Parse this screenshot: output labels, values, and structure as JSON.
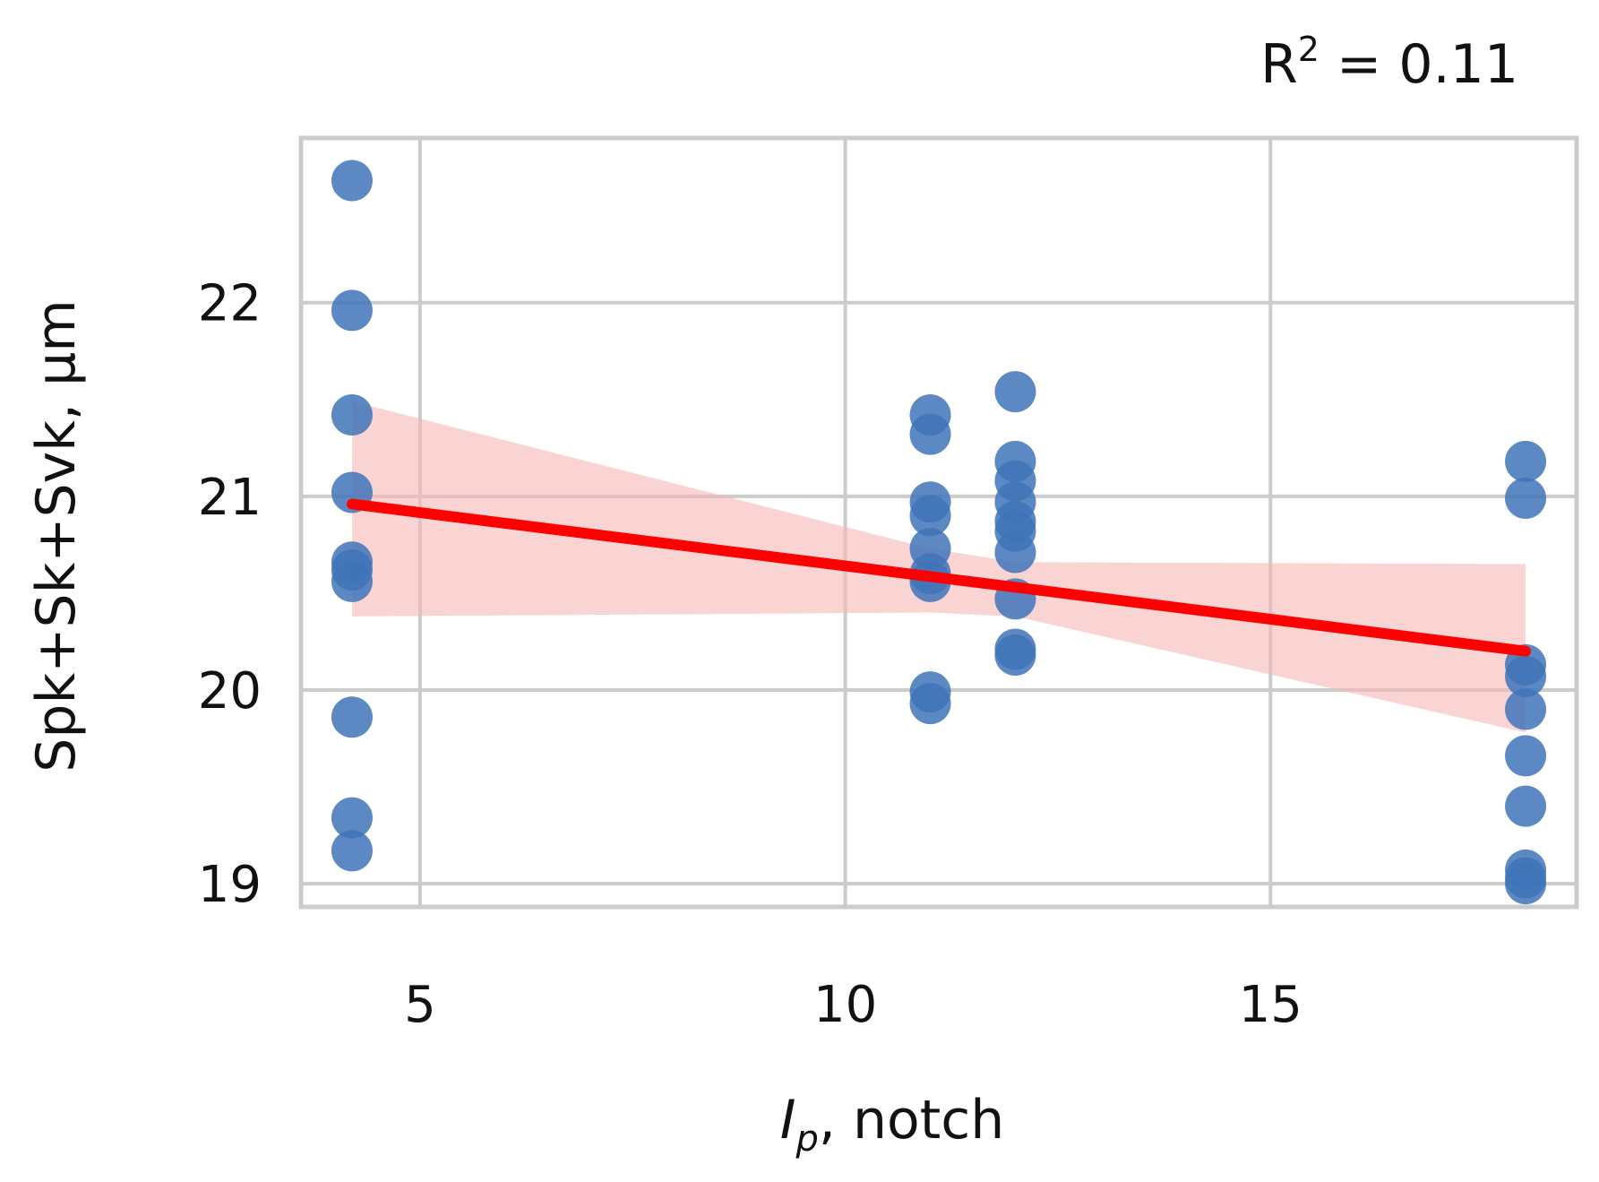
{
  "chart_data": {
    "type": "scatter",
    "title": "",
    "annotation": {
      "r2_label": "R",
      "r2_sup": "2",
      "r2_value": " = 0.11"
    },
    "xlabel": {
      "italic": "I",
      "subscript": "p",
      "rest": ", notch"
    },
    "ylabel": "Spk+Sk+Svk, μm",
    "xlim": [
      3.6,
      18.6
    ],
    "ylim": [
      18.88,
      22.85
    ],
    "x_ticks": [
      5,
      10,
      15
    ],
    "y_ticks": [
      19,
      20,
      21,
      22
    ],
    "x_tick_labels": [
      "5",
      "10",
      "15"
    ],
    "y_tick_labels": [
      "19",
      "20",
      "21",
      "22"
    ],
    "grid": true,
    "points_color": "#3f74b8",
    "fit_color": "#ff0000",
    "band_color": "#f7b6b6",
    "points": [
      {
        "x": 4.2,
        "y": 22.63
      },
      {
        "x": 4.2,
        "y": 21.96
      },
      {
        "x": 4.2,
        "y": 21.42
      },
      {
        "x": 4.2,
        "y": 21.02
      },
      {
        "x": 4.2,
        "y": 20.66
      },
      {
        "x": 4.2,
        "y": 20.62
      },
      {
        "x": 4.2,
        "y": 20.56
      },
      {
        "x": 4.2,
        "y": 19.86
      },
      {
        "x": 4.2,
        "y": 19.34
      },
      {
        "x": 4.2,
        "y": 19.17
      },
      {
        "x": 11.0,
        "y": 21.42
      },
      {
        "x": 11.0,
        "y": 21.32
      },
      {
        "x": 11.0,
        "y": 20.97
      },
      {
        "x": 11.0,
        "y": 20.9
      },
      {
        "x": 11.0,
        "y": 20.73
      },
      {
        "x": 11.0,
        "y": 20.6
      },
      {
        "x": 11.0,
        "y": 20.56
      },
      {
        "x": 11.0,
        "y": 19.99
      },
      {
        "x": 11.0,
        "y": 19.93
      },
      {
        "x": 12.0,
        "y": 21.54
      },
      {
        "x": 12.0,
        "y": 21.18
      },
      {
        "x": 12.0,
        "y": 21.08
      },
      {
        "x": 12.0,
        "y": 20.97
      },
      {
        "x": 12.0,
        "y": 20.87
      },
      {
        "x": 12.0,
        "y": 20.82
      },
      {
        "x": 12.0,
        "y": 20.71
      },
      {
        "x": 12.0,
        "y": 20.47
      },
      {
        "x": 12.0,
        "y": 20.21
      },
      {
        "x": 12.0,
        "y": 20.18
      },
      {
        "x": 18.0,
        "y": 21.18
      },
      {
        "x": 18.0,
        "y": 20.99
      },
      {
        "x": 18.0,
        "y": 20.13
      },
      {
        "x": 18.0,
        "y": 20.07
      },
      {
        "x": 18.0,
        "y": 19.9
      },
      {
        "x": 18.0,
        "y": 19.66
      },
      {
        "x": 18.0,
        "y": 19.4
      },
      {
        "x": 18.0,
        "y": 19.07
      },
      {
        "x": 18.0,
        "y": 19.03
      },
      {
        "x": 18.0,
        "y": 19.0
      }
    ],
    "fit_line": {
      "x": [
        4.2,
        18.0
      ],
      "y": [
        20.96,
        20.2
      ]
    },
    "confidence_band": {
      "x": [
        4.2,
        11.0,
        12.0,
        18.0
      ],
      "upper": [
        21.49,
        20.73,
        20.66,
        20.65
      ],
      "lower": [
        20.38,
        20.4,
        20.38,
        19.78
      ]
    }
  }
}
